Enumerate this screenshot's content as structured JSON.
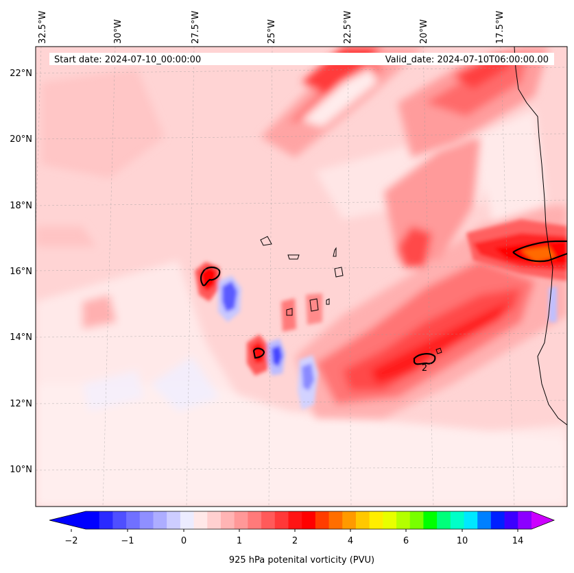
{
  "header": {
    "start_label": "Start date: 2024-07-10_00:00:00",
    "valid_label": "Valid_date: 2024-07-10T06:00:00.00"
  },
  "map": {
    "lon_labels": [
      "32.5°W",
      "30°W",
      "27.5°W",
      "25°W",
      "22.5°W",
      "20°W",
      "17.5°W"
    ],
    "lat_labels": [
      "22°N",
      "20°N",
      "18°N",
      "16°N",
      "14°N",
      "12°N",
      "10°N"
    ],
    "contour_label": "2"
  },
  "colorbar": {
    "label": "925 hPa potenital vorticity (PVU)",
    "tick_labels": [
      "−2",
      "−1",
      "0",
      "1",
      "2",
      "4",
      "6",
      "10",
      "14"
    ],
    "colors": [
      "#0000ff",
      "#2a2aff",
      "#4f4fff",
      "#7070ff",
      "#8f8fff",
      "#adadff",
      "#cdcdff",
      "#ececff",
      "#ffe8e8",
      "#ffd0d0",
      "#ffb4b4",
      "#ff9898",
      "#ff7a7a",
      "#ff5a5a",
      "#ff3838",
      "#ff1414",
      "#ff0000",
      "#ff3c00",
      "#ff6e00",
      "#ff9a00",
      "#ffc800",
      "#ffee00",
      "#e8ff00",
      "#b4ff00",
      "#78ff00",
      "#00ff00",
      "#00ff7a",
      "#00ffc8",
      "#00e8ff",
      "#0080ff",
      "#0020ff",
      "#3c00ff",
      "#8c00ff"
    ],
    "under_color": "#0000ff",
    "over_color": "#cc00ff"
  }
}
